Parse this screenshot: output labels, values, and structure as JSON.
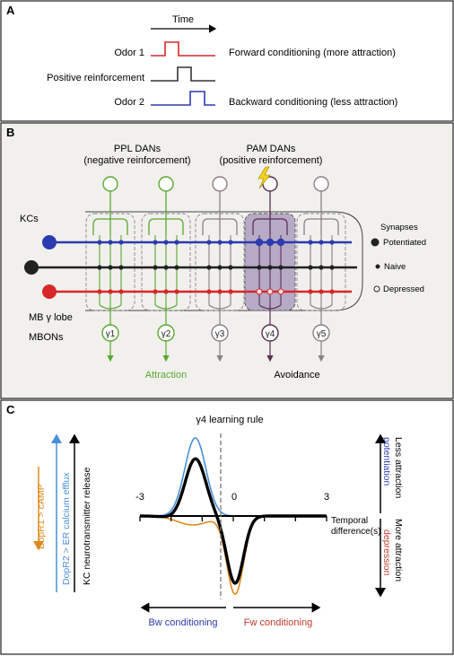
{
  "panel_a": {
    "letter": "A",
    "time_label": "Time",
    "rows": [
      {
        "label": "Odor 1",
        "description": "Forward conditioning (more attraction)",
        "color": "#d62828"
      },
      {
        "label": "Positive reinforcement",
        "description": "",
        "color": "#333333"
      },
      {
        "label": "Odor 2",
        "description": "Backward conditioning (less attraction)",
        "color": "#2b3bb0"
      }
    ]
  },
  "panel_b": {
    "letter": "B",
    "ppl_title": "PPL DANs",
    "ppl_subtitle": "(negative reinforcement)",
    "pam_title": "PAM DANs",
    "pam_subtitle": "(positive reinforcement)",
    "kcs_label": "KCs",
    "lobe_label": "MB γ lobe",
    "mbons_label": "MBONs",
    "compartments": [
      "γ1",
      "γ2",
      "γ3",
      "γ4",
      "γ5"
    ],
    "attraction_label": "Attraction",
    "avoidance_label": "Avoidance",
    "legend_title": "Synapses",
    "legend_items": [
      "Potentiated",
      "Naive",
      "Depressed"
    ],
    "colors": {
      "green": "#5aa832",
      "purple": "#5a2f50",
      "grey": "#8a8088",
      "blue": "#2b3bb0",
      "black": "#222222",
      "red": "#d62828",
      "highlight": "#b7aac7"
    }
  },
  "panel_c": {
    "letter": "C",
    "title": "γ4 learning rule",
    "x_ticks": [
      "-3",
      "0",
      "3"
    ],
    "x_label_line1": "Temporal",
    "x_label_line2": "difference(s)",
    "left_label_orange": "DopR1 > cAMP",
    "left_label_blue": "DopR2 > ER calcium efflux",
    "left_label_black": "KC neurotransmitter release",
    "right_label_top_black": "Less attraction",
    "right_label_top_colored": "potentiation",
    "right_label_bottom_black": "More attraction",
    "right_label_bottom_colored": "depression",
    "bw_label": "Bw conditioning",
    "fw_label": "Fw conditioning",
    "colors": {
      "orange": "#e08a1e",
      "blue": "#4a90d9",
      "black": "#000000",
      "bw": "#2b3bb0",
      "fw": "#c0392b"
    }
  }
}
